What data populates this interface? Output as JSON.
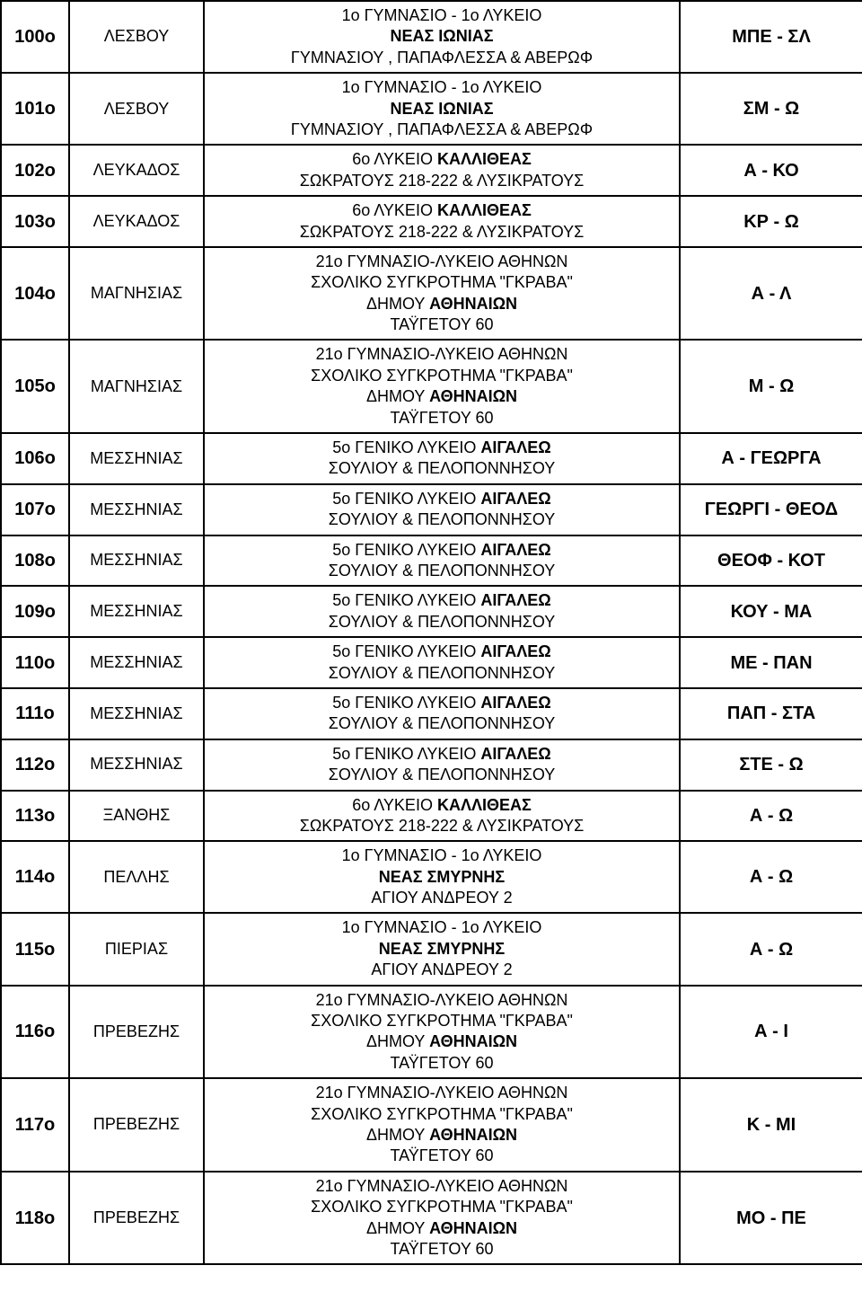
{
  "rows": [
    {
      "num": "100ο",
      "region": "ΛΕΣΒΟΥ",
      "lines": [
        {
          "t": "1ο ΓΥΜΝΑΣΙΟ - 1ο ΛΥΚΕΙΟ",
          "b": false
        },
        {
          "t": "ΝΕΑΣ ΙΩΝΙΑΣ",
          "b": true
        },
        {
          "t": "ΓΥΜΝΑΣΙΟΥ , ΠΑΠΑΦΛΕΣΣΑ & ΑΒΕΡΩΦ",
          "b": false
        }
      ],
      "range": "ΜΠΕ - ΣΛ"
    },
    {
      "num": "101ο",
      "region": "ΛΕΣΒΟΥ",
      "lines": [
        {
          "t": "1ο ΓΥΜΝΑΣΙΟ - 1ο ΛΥΚΕΙΟ",
          "b": false
        },
        {
          "t": "ΝΕΑΣ ΙΩΝΙΑΣ",
          "b": true
        },
        {
          "t": "ΓΥΜΝΑΣΙΟΥ , ΠΑΠΑΦΛΕΣΣΑ & ΑΒΕΡΩΦ",
          "b": false
        }
      ],
      "range": "ΣΜ - Ω"
    },
    {
      "num": "102ο",
      "region": "ΛΕΥΚΑΔΟΣ",
      "lines": [
        {
          "t": "6ο ΛΥΚΕΙΟ <b>ΚΑΛΛΙΘΕΑΣ</b>",
          "b": false,
          "html": true
        },
        {
          "t": "ΣΩΚΡΑΤΟΥΣ 218-222 & ΛΥΣΙΚΡΑΤΟΥΣ",
          "b": false
        }
      ],
      "range": "Α - ΚΟ"
    },
    {
      "num": "103ο",
      "region": "ΛΕΥΚΑΔΟΣ",
      "lines": [
        {
          "t": "6ο ΛΥΚΕΙΟ <b>ΚΑΛΛΙΘΕΑΣ</b>",
          "b": false,
          "html": true
        },
        {
          "t": "ΣΩΚΡΑΤΟΥΣ 218-222 & ΛΥΣΙΚΡΑΤΟΥΣ",
          "b": false
        }
      ],
      "range": "ΚΡ - Ω"
    },
    {
      "num": "104ο",
      "region": "ΜΑΓΝΗΣΙΑΣ",
      "lines": [
        {
          "t": "21ο ΓΥΜΝΑΣΙΟ-ΛΥΚΕΙΟ ΑΘΗΝΩΝ",
          "b": false
        },
        {
          "t": "ΣΧΟΛΙΚΟ ΣΥΓΚΡΟΤΗΜΑ \"ΓΚΡΑΒΑ\"",
          "b": false
        },
        {
          "t": "ΔΗΜΟΥ <b>ΑΘΗΝΑΙΩΝ</b>",
          "b": false,
          "html": true
        },
        {
          "t": "ΤΑΫΓΕΤΟΥ 60",
          "b": false
        }
      ],
      "range": "Α - Λ"
    },
    {
      "num": "105ο",
      "region": "ΜΑΓΝΗΣΙΑΣ",
      "lines": [
        {
          "t": "21ο ΓΥΜΝΑΣΙΟ-ΛΥΚΕΙΟ ΑΘΗΝΩΝ",
          "b": false
        },
        {
          "t": "ΣΧΟΛΙΚΟ ΣΥΓΚΡΟΤΗΜΑ \"ΓΚΡΑΒΑ\"",
          "b": false
        },
        {
          "t": "ΔΗΜΟΥ <b>ΑΘΗΝΑΙΩΝ</b>",
          "b": false,
          "html": true
        },
        {
          "t": "ΤΑΫΓΕΤΟΥ 60",
          "b": false
        }
      ],
      "range": "Μ - Ω"
    },
    {
      "num": "106ο",
      "region": "ΜΕΣΣΗΝΙΑΣ",
      "lines": [
        {
          "t": "5ο ΓΕΝΙΚΟ  ΛΥΚΕΙΟ <b>ΑΙΓΑΛΕΩ</b>",
          "b": false,
          "html": true
        },
        {
          "t": "ΣΟΥΛΙΟΥ & ΠΕΛΟΠΟΝΝΗΣΟΥ",
          "b": false
        }
      ],
      "range": "Α - ΓΕΩΡΓΑ"
    },
    {
      "num": "107ο",
      "region": "ΜΕΣΣΗΝΙΑΣ",
      "lines": [
        {
          "t": "5ο ΓΕΝΙΚΟ  ΛΥΚΕΙΟ <b>ΑΙΓΑΛΕΩ</b>",
          "b": false,
          "html": true
        },
        {
          "t": "ΣΟΥΛΙΟΥ & ΠΕΛΟΠΟΝΝΗΣΟΥ",
          "b": false
        }
      ],
      "range": "ΓΕΩΡΓΙ - ΘΕΟΔ"
    },
    {
      "num": "108ο",
      "region": "ΜΕΣΣΗΝΙΑΣ",
      "lines": [
        {
          "t": "5ο ΓΕΝΙΚΟ  ΛΥΚΕΙΟ <b>ΑΙΓΑΛΕΩ</b>",
          "b": false,
          "html": true
        },
        {
          "t": "ΣΟΥΛΙΟΥ & ΠΕΛΟΠΟΝΝΗΣΟΥ",
          "b": false
        }
      ],
      "range": "ΘΕΟΦ - ΚΟΤ"
    },
    {
      "num": "109ο",
      "region": "ΜΕΣΣΗΝΙΑΣ",
      "lines": [
        {
          "t": "5ο ΓΕΝΙΚΟ  ΛΥΚΕΙΟ <b>ΑΙΓΑΛΕΩ</b>",
          "b": false,
          "html": true
        },
        {
          "t": "ΣΟΥΛΙΟΥ & ΠΕΛΟΠΟΝΝΗΣΟΥ",
          "b": false
        }
      ],
      "range": "ΚΟΥ - ΜΑ"
    },
    {
      "num": "110ο",
      "region": "ΜΕΣΣΗΝΙΑΣ",
      "lines": [
        {
          "t": "5ο ΓΕΝΙΚΟ  ΛΥΚΕΙΟ <b>ΑΙΓΑΛΕΩ</b>",
          "b": false,
          "html": true
        },
        {
          "t": "ΣΟΥΛΙΟΥ & ΠΕΛΟΠΟΝΝΗΣΟΥ",
          "b": false
        }
      ],
      "range": "ΜΕ - ΠΑΝ"
    },
    {
      "num": "111ο",
      "region": "ΜΕΣΣΗΝΙΑΣ",
      "lines": [
        {
          "t": "5ο ΓΕΝΙΚΟ  ΛΥΚΕΙΟ <b>ΑΙΓΑΛΕΩ</b>",
          "b": false,
          "html": true
        },
        {
          "t": "ΣΟΥΛΙΟΥ & ΠΕΛΟΠΟΝΝΗΣΟΥ",
          "b": false
        }
      ],
      "range": "ΠΑΠ - ΣΤΑ"
    },
    {
      "num": "112ο",
      "region": "ΜΕΣΣΗΝΙΑΣ",
      "lines": [
        {
          "t": "5ο ΓΕΝΙΚΟ  ΛΥΚΕΙΟ <b>ΑΙΓΑΛΕΩ</b>",
          "b": false,
          "html": true
        },
        {
          "t": "ΣΟΥΛΙΟΥ & ΠΕΛΟΠΟΝΝΗΣΟΥ",
          "b": false
        }
      ],
      "range": "ΣΤΕ - Ω"
    },
    {
      "num": "113ο",
      "region": "ΞΑΝΘΗΣ",
      "lines": [
        {
          "t": "6ο ΛΥΚΕΙΟ <b>ΚΑΛΛΙΘΕΑΣ</b>",
          "b": false,
          "html": true
        },
        {
          "t": "ΣΩΚΡΑΤΟΥΣ 218-222 & ΛΥΣΙΚΡΑΤΟΥΣ",
          "b": false
        }
      ],
      "range": "Α - Ω"
    },
    {
      "num": "114ο",
      "region": "ΠΕΛΛΗΣ",
      "lines": [
        {
          "t": "1o ΓΥΜΝΑΣΙΟ - 1ο ΛΥΚΕΙΟ",
          "b": false
        },
        {
          "t": "ΝΕΑΣ ΣΜΥΡΝΗΣ",
          "b": true
        },
        {
          "t": "ΑΓΙΟΥ ΑΝΔΡΕΟΥ 2",
          "b": false
        }
      ],
      "range": "Α - Ω"
    },
    {
      "num": "115ο",
      "region": "ΠΙΕΡΙΑΣ",
      "lines": [
        {
          "t": "1o ΓΥΜΝΑΣΙΟ - 1ο ΛΥΚΕΙΟ",
          "b": false
        },
        {
          "t": "ΝΕΑΣ ΣΜΥΡΝΗΣ",
          "b": true
        },
        {
          "t": "ΑΓΙΟΥ ΑΝΔΡΕΟΥ 2",
          "b": false
        }
      ],
      "range": "Α - Ω"
    },
    {
      "num": "116ο",
      "region": "ΠΡΕΒΕΖΗΣ",
      "lines": [
        {
          "t": "21ο ΓΥΜΝΑΣΙΟ-ΛΥΚΕΙΟ ΑΘΗΝΩΝ",
          "b": false
        },
        {
          "t": "ΣΧΟΛΙΚΟ ΣΥΓΚΡΟΤΗΜΑ \"ΓΚΡΑΒΑ\"",
          "b": false
        },
        {
          "t": "ΔΗΜΟΥ <b>ΑΘΗΝΑΙΩΝ</b>",
          "b": false,
          "html": true
        },
        {
          "t": "ΤΑΫΓΕΤΟΥ 60",
          "b": false
        }
      ],
      "range": "Α - Ι"
    },
    {
      "num": "117ο",
      "region": "ΠΡΕΒΕΖΗΣ",
      "lines": [
        {
          "t": "21ο ΓΥΜΝΑΣΙΟ-ΛΥΚΕΙΟ ΑΘΗΝΩΝ",
          "b": false
        },
        {
          "t": "ΣΧΟΛΙΚΟ ΣΥΓΚΡΟΤΗΜΑ \"ΓΚΡΑΒΑ\"",
          "b": false
        },
        {
          "t": "ΔΗΜΟΥ <b>ΑΘΗΝΑΙΩΝ</b>",
          "b": false,
          "html": true
        },
        {
          "t": "ΤΑΫΓΕΤΟΥ 60",
          "b": false
        }
      ],
      "range": "Κ - ΜΙ"
    },
    {
      "num": "118ο",
      "region": "ΠΡΕΒΕΖΗΣ",
      "lines": [
        {
          "t": "21ο ΓΥΜΝΑΣΙΟ-ΛΥΚΕΙΟ ΑΘΗΝΩΝ",
          "b": false
        },
        {
          "t": "ΣΧΟΛΙΚΟ ΣΥΓΚΡΟΤΗΜΑ \"ΓΚΡΑΒΑ\"",
          "b": false
        },
        {
          "t": "ΔΗΜΟΥ <b>ΑΘΗΝΑΙΩΝ</b>",
          "b": false,
          "html": true
        },
        {
          "t": "ΤΑΫΓΕΤΟΥ 60",
          "b": false
        }
      ],
      "range": "ΜΟ - ΠΕ"
    }
  ]
}
